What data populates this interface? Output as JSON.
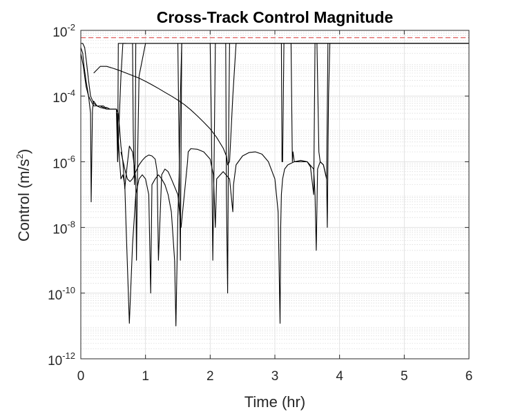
{
  "chart_data": {
    "type": "line",
    "title": "Cross-Track Control Magnitude",
    "xlabel": "Time (hr)",
    "ylabel": "Control (m/s²)",
    "ylabel_base": "Control (m/s",
    "ylabel_sup": "2",
    "ylabel_end": ")",
    "xscale": "linear",
    "yscale": "log",
    "xlim": [
      0,
      6
    ],
    "ylim": [
      1e-12,
      0.01
    ],
    "x_ticks": [
      0,
      1,
      2,
      3,
      4,
      5,
      6
    ],
    "x_tick_labels": [
      "0",
      "1",
      "2",
      "3",
      "4",
      "5",
      "6"
    ],
    "y_ticks": [
      1e-12,
      1e-10,
      1e-08,
      1e-06,
      0.0001,
      0.01
    ],
    "y_tick_labels": [
      {
        "base": "10",
        "exp": "-12"
      },
      {
        "base": "10",
        "exp": "-10"
      },
      {
        "base": "10",
        "exp": "-8"
      },
      {
        "base": "10",
        "exp": "-6"
      },
      {
        "base": "10",
        "exp": "-4"
      },
      {
        "base": "10",
        "exp": "-2"
      }
    ],
    "grid": "major and minor",
    "limit_line": {
      "y": 0.006,
      "style": "dashed",
      "color": "#e06666"
    },
    "series_color": "#000000",
    "series": [
      {
        "x": [
          0,
          0.03,
          0.06,
          0.09,
          0.12,
          0.15,
          0.2,
          0.25,
          0.3,
          0.35,
          0.4,
          0.45,
          0.5,
          0.55,
          0.57,
          0.6,
          0.62,
          0.65,
          0.8,
          1.0,
          1.2,
          1.4,
          1.6,
          1.8,
          2.0,
          3.0,
          4.0,
          5.0,
          6.0
        ],
        "y": [
          0.004,
          0.004,
          0.003,
          0.001,
          0.0003,
          0.0001,
          6e-05,
          5e-05,
          5e-05,
          4.5e-05,
          4.5e-05,
          4e-05,
          4e-05,
          4e-05,
          1e-06,
          4e-05,
          0.0004,
          0.004,
          0.004,
          0.004,
          0.004,
          0.004,
          0.004,
          0.004,
          0.004,
          0.004,
          0.004,
          0.004,
          0.004
        ]
      },
      {
        "x": [
          0,
          0.03,
          0.05,
          0.08,
          0.12,
          0.15,
          0.16,
          0.18,
          0.2,
          0.25,
          0.3,
          0.35,
          0.4,
          0.45,
          0.5,
          0.55,
          0.58,
          0.6,
          0.62,
          0.65,
          0.68,
          0.7,
          0.75,
          0.8,
          0.85,
          0.86,
          0.88,
          0.9,
          1.0,
          2.0,
          3.0,
          4.0,
          5.0,
          6.0
        ],
        "y": [
          0.003,
          0.002,
          0.0008,
          0.0003,
          0.0001,
          3e-05,
          6e-08,
          4e-05,
          7e-05,
          5e-05,
          5e-05,
          5e-05,
          4e-05,
          4e-05,
          4e-05,
          4e-05,
          3e-05,
          1e-05,
          3e-06,
          1e-06,
          1.5e-07,
          4e-07,
          3e-06,
          2e-06,
          3e-07,
          1e-09,
          2e-06,
          0.0004,
          0.004,
          0.004,
          0.004,
          0.004,
          0.004,
          0.004
        ]
      },
      {
        "x": [
          0,
          0.04,
          0.08,
          0.12,
          0.16,
          0.2,
          0.25,
          0.3,
          0.4,
          0.5,
          0.55,
          0.56,
          0.58,
          0.6,
          0.62,
          0.65,
          0.68,
          0.7,
          0.75,
          0.8,
          0.85,
          0.9,
          0.95,
          1.0,
          1.05,
          1.08,
          1.1,
          1.15,
          1.2,
          1.25,
          1.3,
          1.35,
          1.4,
          1.45,
          1.47,
          1.5,
          1.52,
          1.54,
          1.56,
          1.6,
          2.0,
          3.0,
          4.0,
          5.0,
          6.0
        ],
        "y": [
          0.002,
          0.0008,
          0.0002,
          0.0001,
          7e-05,
          5e-05,
          5e-05,
          4.5e-05,
          4e-05,
          4e-05,
          4e-05,
          2e-05,
          5e-06,
          1e-06,
          3e-07,
          4e-07,
          2e-07,
          1e-08,
          1.2e-11,
          3e-09,
          1e-07,
          3e-07,
          4e-07,
          3e-07,
          1e-07,
          1e-10,
          2e-07,
          3e-07,
          4e-07,
          3e-07,
          2e-07,
          1e-07,
          3e-08,
          1e-09,
          1e-11,
          2e-08,
          4e-07,
          0.0001,
          0.004,
          0.004,
          0.004,
          0.004,
          0.004,
          0.004,
          0.004
        ]
      },
      {
        "x": [
          0.2,
          0.3,
          0.4,
          0.5,
          0.6,
          0.7,
          0.8,
          0.9,
          1.0,
          1.1,
          1.2,
          1.3,
          1.4,
          1.5,
          1.6,
          1.7,
          1.8,
          1.9,
          2.0,
          2.1,
          2.2,
          2.25,
          2.27,
          2.3,
          2.35,
          2.4,
          3.0,
          4.0,
          5.0,
          6.0
        ],
        "y": [
          0.0005,
          0.0008,
          0.0008,
          0.0007,
          0.0006,
          0.0005,
          0.00042,
          0.00035,
          0.00028,
          0.00022,
          0.00017,
          0.00013,
          0.0001,
          7.5e-05,
          5.5e-05,
          3.8e-05,
          2.5e-05,
          1.6e-05,
          1e-05,
          5.5e-06,
          2.6e-06,
          1.5e-06,
          8e-07,
          1e-06,
          0.0001,
          0.004,
          0.004,
          0.004,
          0.004,
          0.004
        ]
      },
      {
        "x": [
          0.62,
          0.68,
          0.72,
          0.76,
          0.8,
          0.85,
          0.9,
          0.95,
          1.0,
          1.05,
          1.1,
          1.15,
          1.18,
          1.2,
          1.25,
          1.3,
          1.35,
          1.4,
          1.5,
          1.55,
          1.6,
          1.63,
          1.65,
          1.66,
          1.7,
          1.8,
          1.9,
          2.0,
          2.05,
          2.08,
          2.1,
          2.2,
          2.3,
          2.35,
          2.36,
          2.4,
          2.5,
          2.6,
          2.7,
          2.8,
          2.9,
          3.0,
          3.05,
          3.08,
          3.09,
          3.1,
          3.12,
          3.15,
          3.2,
          3.3,
          3.4,
          3.5,
          3.6,
          3.62,
          3.64,
          3.66,
          3.7,
          3.75,
          3.8,
          3.81,
          3.83,
          3.85,
          3.9,
          4.0,
          5.0,
          6.0
        ],
        "y": [
          2e-06,
          6e-07,
          3e-07,
          2.5e-07,
          3e-07,
          5e-07,
          8e-07,
          1.1e-06,
          1.4e-06,
          1.6e-06,
          1.5e-06,
          1.2e-06,
          5e-07,
          1e-09,
          4e-07,
          6e-07,
          5e-07,
          3e-07,
          1e-07,
          1e-08,
          1e-07,
          4e-07,
          1e-06,
          2e-06,
          2.5e-06,
          2.4e-06,
          2e-06,
          1.2e-06,
          4e-07,
          1e-08,
          3e-07,
          5e-07,
          3e-07,
          3e-08,
          2e-07,
          8e-07,
          1.5e-06,
          1.9e-06,
          2e-06,
          1.7e-06,
          1e-06,
          3e-07,
          3e-08,
          1.2e-11,
          1e-08,
          1e-07,
          3e-07,
          6e-07,
          8e-07,
          1e-06,
          1.1e-06,
          1e-06,
          6e-07,
          1e-07,
          2e-09,
          6e-07,
          1e-06,
          8e-07,
          3e-07,
          1e-08,
          0.0001,
          0.004,
          0.004,
          0.004,
          0.004,
          0.004
        ]
      },
      {
        "x": [
          0.56,
          0.57,
          0.58,
          0.6,
          0.62,
          0.64,
          0.66,
          0.68,
          0.7
        ],
        "y": [
          3e-05,
          1e-06,
          0.004,
          0.004,
          0.004,
          0.004,
          0.004,
          0.004,
          0.004
        ]
      },
      {
        "x": [
          0.8,
          0.81,
          0.82,
          0.83,
          0.84,
          0.85
        ],
        "y": [
          0.004,
          1e-05,
          1e-06,
          2e-07,
          1e-06,
          0.004
        ]
      },
      {
        "x": [
          1.5,
          1.52,
          1.54,
          1.56
        ],
        "y": [
          0.004,
          2e-06,
          1e-09,
          0.004
        ]
      },
      {
        "x": [
          2.0,
          2.02,
          2.04,
          2.06,
          2.08
        ],
        "y": [
          0.004,
          1e-05,
          1e-09,
          1e-06,
          0.004
        ]
      },
      {
        "x": [
          2.24,
          2.25,
          2.27,
          2.28,
          2.3
        ],
        "y": [
          0.004,
          1e-07,
          1e-10,
          1e-06,
          0.004
        ]
      },
      {
        "x": [
          3.1,
          3.11,
          3.12,
          3.14
        ],
        "y": [
          0.004,
          1e-06,
          1e-06,
          0.004
        ]
      },
      {
        "x": [
          3.25,
          3.27,
          3.28,
          3.3,
          3.4,
          3.5,
          3.55,
          3.6,
          3.62
        ],
        "y": [
          0.004,
          1e-06,
          2e-06,
          1e-06,
          1e-06,
          1e-06,
          7e-07,
          1e-07,
          0.004
        ]
      },
      {
        "x": [
          3.65,
          3.68,
          3.7,
          3.75,
          3.8,
          3.82
        ],
        "y": [
          0.004,
          2e-06,
          1e-06,
          8e-07,
          3e-07,
          0.004
        ]
      }
    ]
  }
}
